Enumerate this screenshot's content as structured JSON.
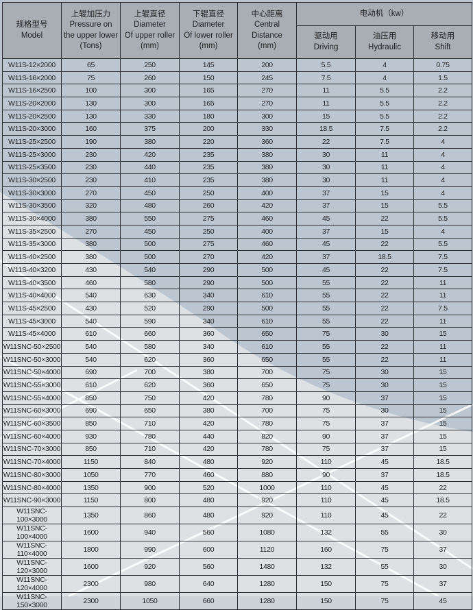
{
  "header": {
    "model": {
      "zh": "规格型号",
      "en": "Model"
    },
    "pressure": {
      "zh": "上辊加压力",
      "en1": "Pressure on",
      "en2": "the upper lower",
      "unit": "(Tons)"
    },
    "upper_diameter": {
      "zh": "上辊直径",
      "en1": "Diameter",
      "en2": "Of upper roller",
      "unit": "(mm)"
    },
    "lower_diameter": {
      "zh": "下辊直径",
      "en1": "Diameter",
      "en2": "Of lower roller",
      "unit": "(mm)"
    },
    "center_distance": {
      "zh": "中心距离",
      "en1": "Central",
      "en2": "Distance",
      "unit": "(mm)"
    },
    "motor": {
      "label": "电动机（kw）"
    },
    "driving": {
      "zh": "驱动用",
      "en": "Driving"
    },
    "hydraulic": {
      "zh": "油压用",
      "en": "Hydraulic"
    },
    "shift": {
      "zh": "移动用",
      "en": "Shift"
    }
  },
  "rows": [
    [
      "W11S-12×2000",
      "65",
      "250",
      "145",
      "200",
      "5.5",
      "4",
      "0.75"
    ],
    [
      "W11S-16×2000",
      "75",
      "260",
      "150",
      "245",
      "7.5",
      "4",
      "1.5"
    ],
    [
      "W11S-16×2500",
      "100",
      "300",
      "165",
      "270",
      "11",
      "5.5",
      "2.2"
    ],
    [
      "W11S-20×2000",
      "130",
      "300",
      "165",
      "270",
      "11",
      "5.5",
      "2.2"
    ],
    [
      "W11S-20×2500",
      "130",
      "330",
      "180",
      "300",
      "15",
      "5.5",
      "2.2"
    ],
    [
      "W11S-20×3000",
      "160",
      "375",
      "200",
      "330",
      "18.5",
      "7.5",
      "2.2"
    ],
    [
      "W11S-25×2500",
      "190",
      "380",
      "220",
      "360",
      "22",
      "7.5",
      "4"
    ],
    [
      "W11S-25×3000",
      "230",
      "420",
      "235",
      "380",
      "30",
      "11",
      "4"
    ],
    [
      "W11S-25×3500",
      "230",
      "440",
      "235",
      "380",
      "30",
      "11",
      "4"
    ],
    [
      "W11S-30×2500",
      "230",
      "410",
      "235",
      "380",
      "30",
      "11",
      "4"
    ],
    [
      "W11S-30×3000",
      "270",
      "450",
      "250",
      "400",
      "37",
      "15",
      "4"
    ],
    [
      "W11S-30×3500",
      "320",
      "480",
      "260",
      "420",
      "37",
      "15",
      "5.5"
    ],
    [
      "W11S-30×4000",
      "380",
      "550",
      "275",
      "460",
      "45",
      "22",
      "5.5"
    ],
    [
      "W11S-35×2500",
      "270",
      "450",
      "250",
      "400",
      "37",
      "15",
      "4"
    ],
    [
      "W11S-35×3000",
      "380",
      "500",
      "275",
      "460",
      "45",
      "22",
      "5.5"
    ],
    [
      "W11S-40×2500",
      "380",
      "500",
      "270",
      "420",
      "37",
      "18.5",
      "7.5"
    ],
    [
      "W11S-40×3200",
      "430",
      "540",
      "290",
      "500",
      "45",
      "22",
      "7.5"
    ],
    [
      "W11S-40×3500",
      "460",
      "580",
      "290",
      "500",
      "55",
      "22",
      "11"
    ],
    [
      "W11S-40×4000",
      "540",
      "630",
      "340",
      "610",
      "55",
      "22",
      "11"
    ],
    [
      "W11S-45×2500",
      "430",
      "520",
      "290",
      "500",
      "55",
      "22",
      "7.5"
    ],
    [
      "W11S-45×3000",
      "540",
      "590",
      "340",
      "610",
      "55",
      "22",
      "11"
    ],
    [
      "W11S-45×4000",
      "610",
      "660",
      "360",
      "650",
      "75",
      "30",
      "15"
    ],
    [
      "W11SNC-50×2500",
      "540",
      "580",
      "340",
      "610",
      "55",
      "22",
      "11"
    ],
    [
      "W11SNC-50×3000",
      "540",
      "620",
      "360",
      "650",
      "55",
      "22",
      "11"
    ],
    [
      "W11SNC-50×4000",
      "690",
      "700",
      "380",
      "700",
      "75",
      "30",
      "15"
    ],
    [
      "W11SNC-55×3000",
      "610",
      "620",
      "360",
      "650",
      "75",
      "30",
      "15"
    ],
    [
      "W11SNC-55×4000",
      "850",
      "750",
      "420",
      "780",
      "90",
      "37",
      "15"
    ],
    [
      "W11SNC-60×3000",
      "690",
      "650",
      "380",
      "700",
      "75",
      "30",
      "15"
    ],
    [
      "W11SNC-60×3500",
      "850",
      "710",
      "420",
      "780",
      "75",
      "37",
      "15"
    ],
    [
      "W11SNC-60×4000",
      "930",
      "780",
      "440",
      "820",
      "90",
      "37",
      "15"
    ],
    [
      "W11SNC-70×3000",
      "850",
      "710",
      "420",
      "780",
      "75",
      "37",
      "15"
    ],
    [
      "W11SNC-70×4000",
      "1150",
      "840",
      "480",
      "920",
      "110",
      "45",
      "18.5"
    ],
    [
      "W11SNC-80×3000",
      "1050",
      "770",
      "460",
      "880",
      "90",
      "37",
      "18.5"
    ],
    [
      "W11SNC-80×4000",
      "1350",
      "900",
      "520",
      "1000",
      "110",
      "45",
      "22"
    ],
    [
      "W11SNC-90×3000",
      "1150",
      "800",
      "480",
      "920",
      "110",
      "45",
      "18.5"
    ],
    [
      "W11SNC-100×3000",
      "1350",
      "860",
      "480",
      "920",
      "110",
      "45",
      "22"
    ],
    [
      "W11SNC-100×4000",
      "1600",
      "940",
      "560",
      "1080",
      "132",
      "55",
      "30"
    ],
    [
      "W11SNC-110×4000",
      "1800",
      "990",
      "600",
      "1120",
      "160",
      "75",
      "37"
    ],
    [
      "W11SNC-120×3000",
      "1600",
      "920",
      "560",
      "1480",
      "132",
      "55",
      "30"
    ],
    [
      "W11SNC-120×4000",
      "2300",
      "980",
      "640",
      "1280",
      "150",
      "75",
      "37"
    ],
    [
      "W11SNC-150×3000",
      "2300",
      "1050",
      "660",
      "1280",
      "150",
      "75",
      "45"
    ]
  ],
  "colors": {
    "header_bg": "#a9aeb4",
    "row_dark": "#bcc6d1",
    "row_light": "#e4e7ea",
    "border": "#2a2e33"
  }
}
